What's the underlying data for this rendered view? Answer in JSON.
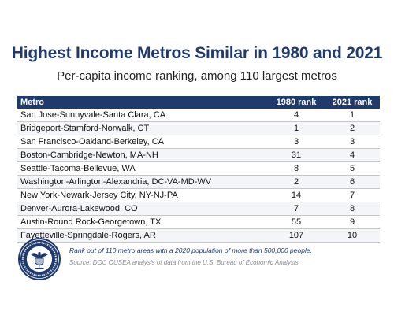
{
  "title": "Highest Income Metros Similar in 1980 and 2021",
  "subtitle": "Per-capita income ranking, among 110 largest metros",
  "table": {
    "headers": {
      "metro": "Metro",
      "y1980": "1980 rank",
      "y2021": "2021 rank"
    },
    "rows": [
      {
        "metro": "San Jose-Sunnyvale-Santa Clara, CA",
        "r1980": "4",
        "r2021": "1"
      },
      {
        "metro": "Bridgeport-Stamford-Norwalk, CT",
        "r1980": "1",
        "r2021": "2"
      },
      {
        "metro": "San Francisco-Oakland-Berkeley, CA",
        "r1980": "3",
        "r2021": "3"
      },
      {
        "metro": "Boston-Cambridge-Newton, MA-NH",
        "r1980": "31",
        "r2021": "4"
      },
      {
        "metro": "Seattle-Tacoma-Bellevue, WA",
        "r1980": "8",
        "r2021": "5"
      },
      {
        "metro": "Washington-Arlington-Alexandria, DC-VA-MD-WV",
        "r1980": "2",
        "r2021": "6"
      },
      {
        "metro": "New York-Newark-Jersey City, NY-NJ-PA",
        "r1980": "14",
        "r2021": "7"
      },
      {
        "metro": "Denver-Aurora-Lakewood, CO",
        "r1980": "7",
        "r2021": "8"
      },
      {
        "metro": "Austin-Round Rock-Georgetown, TX",
        "r1980": "55",
        "r2021": "9"
      },
      {
        "metro": "Fayetteville-Springdale-Rogers, AR",
        "r1980": "107",
        "r2021": "10"
      }
    ]
  },
  "footnote": "Rank out of 110 metro areas with a 2020 population of more than 500,000 people.",
  "source": "Source: DOC OUSEA analysis of data from the U.S. Bureau of Economic Analysis",
  "seal": {
    "icon": "department-of-commerce-seal-icon",
    "ring_text": "DEPARTMENT OF COMMERCE · UNITED STATES OF AMERICA"
  },
  "colors": {
    "navy": "#1f3b6e",
    "stripe": "#f4f5f8",
    "source_gray": "#8c8c8c"
  }
}
